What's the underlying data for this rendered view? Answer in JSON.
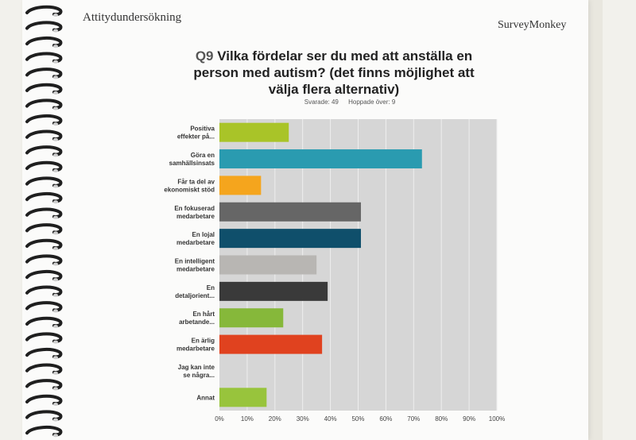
{
  "header": {
    "left_title": "Attitydundersökning",
    "brand": "SurveyMonkey"
  },
  "question": {
    "number": "Q9",
    "text": "Vilka fördelar ser du med att anställa en person med autism? (det finns möjlighet att välja flera alternativ)",
    "answered": "Svarade: 49",
    "skipped": "Hoppade över: 9"
  },
  "chart_data": {
    "type": "bar",
    "orientation": "horizontal",
    "categories": [
      [
        "Positiva",
        "effekter på..."
      ],
      [
        "Göra en",
        "samhällsinsats"
      ],
      [
        "Får ta del av",
        "ekonomiskt stöd"
      ],
      [
        "En fokuserad",
        "medarbetare"
      ],
      [
        "En lojal",
        "medarbetare"
      ],
      [
        "En intelligent",
        "medarbetare"
      ],
      [
        "En",
        "detaljorient..."
      ],
      [
        "En hårt",
        "arbetande..."
      ],
      [
        "En ärlig",
        "medarbetare"
      ],
      [
        "Jag kan inte",
        "se några..."
      ],
      [
        "Annat"
      ]
    ],
    "values": [
      25,
      73,
      15,
      51,
      51,
      35,
      39,
      23,
      37,
      0,
      17
    ],
    "colors": [
      "#a9c428",
      "#2a9bb0",
      "#f5a51d",
      "#666666",
      "#0f4f6b",
      "#b8b6b3",
      "#3a3a3a",
      "#86b83a",
      "#e0421f",
      "#cccccc",
      "#98c43c"
    ],
    "xlim": [
      0,
      100
    ],
    "xticks": [
      "0%",
      "10%",
      "20%",
      "30%",
      "40%",
      "50%",
      "60%",
      "70%",
      "80%",
      "90%",
      "100%"
    ],
    "grid": true
  }
}
